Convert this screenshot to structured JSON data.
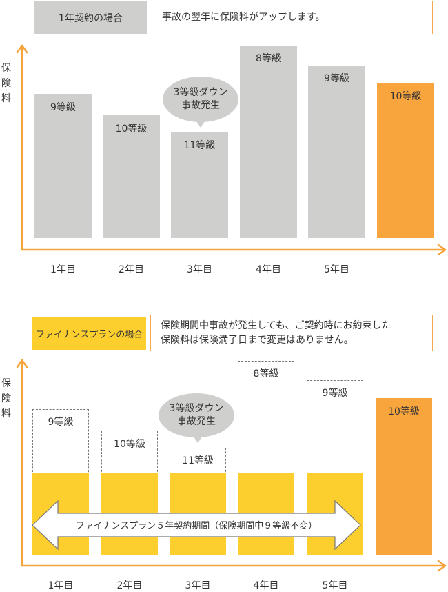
{
  "section1": {
    "tag": "1年契約の場合",
    "description": "事故の翌年に保険料がアップします。",
    "y_axis": [
      "保",
      "険",
      "料"
    ],
    "bars": [
      {
        "year": "1年目",
        "grade": "9等級",
        "level": 9
      },
      {
        "year": "2年目",
        "grade": "10等級",
        "level": 10
      },
      {
        "year": "3年目",
        "grade": "11等級",
        "level": 11
      },
      {
        "year": "4年目",
        "grade": "8等級",
        "level": 8
      },
      {
        "year": "5年目",
        "grade": "9等級",
        "level": 9
      },
      {
        "year": "",
        "grade": "10等級",
        "level": 10
      }
    ],
    "bubble": [
      "3等級ダウン",
      "事故発生"
    ],
    "colors": {
      "bar": "#cfd0ce",
      "highlight": "#f9a53e",
      "axis": "#f6a33b"
    }
  },
  "section2": {
    "tag": "ファイナンスプランの場合",
    "description": [
      "保険期間中事故が発生しても、ご契約時にお約束した",
      "保険料は保険満了日まで変更はありません。"
    ],
    "y_axis": [
      "保",
      "険",
      "料"
    ],
    "bars": [
      {
        "year": "1年目",
        "grade": "9等級",
        "level": 9
      },
      {
        "year": "2年目",
        "grade": "10等級",
        "level": 10
      },
      {
        "year": "3年目",
        "grade": "11等級",
        "level": 11
      },
      {
        "year": "4年目",
        "grade": "8等級",
        "level": 8
      },
      {
        "year": "5年目",
        "grade": "9等級",
        "level": 9
      },
      {
        "year": "",
        "grade": "10等級",
        "level": 10
      }
    ],
    "bubble": [
      "3等級ダウン",
      "事故発生"
    ],
    "period_arrow": "ファイナンスプラン５年契約期間（保険期間中９等級不変）",
    "colors": {
      "fixed": "#fccf2f",
      "highlight": "#f9a53e",
      "axis": "#f6a33b"
    }
  }
}
